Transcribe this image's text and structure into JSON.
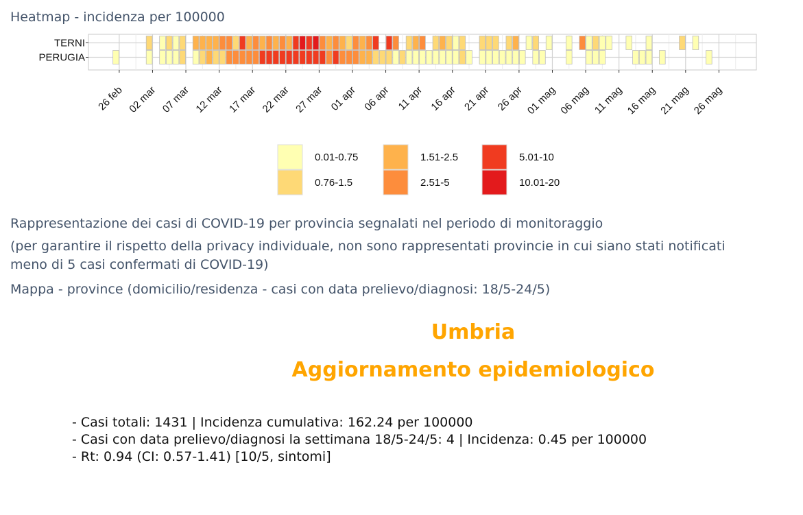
{
  "heatmap": {
    "title": "Heatmap - incidenza per 100000"
  },
  "chart_data": {
    "type": "heatmap",
    "title": "Heatmap - incidenza per 100000",
    "rows": [
      "TERNI",
      "PERUGIA"
    ],
    "x_start": "2020-02-22",
    "x_end": "2020-05-31",
    "x_tick_labels": [
      "26 feb",
      "02 mar",
      "07 mar",
      "12 mar",
      "17 mar",
      "22 mar",
      "27 mar",
      "01 apr",
      "06 apr",
      "11 apr",
      "16 apr",
      "21 apr",
      "26 apr",
      "01 mag",
      "06 mag",
      "11 mag",
      "16 mag",
      "21 mag",
      "26 mag"
    ],
    "x_tick_dates": [
      "2020-02-26",
      "2020-03-02",
      "2020-03-07",
      "2020-03-12",
      "2020-03-17",
      "2020-03-22",
      "2020-03-27",
      "2020-04-01",
      "2020-04-06",
      "2020-04-11",
      "2020-04-16",
      "2020-04-21",
      "2020-04-26",
      "2020-05-01",
      "2020-05-06",
      "2020-05-11",
      "2020-05-16",
      "2020-05-21",
      "2020-05-26"
    ],
    "legend": [
      {
        "label": "0.01-0.75",
        "color": "#ffffb2"
      },
      {
        "label": "0.76-1.5",
        "color": "#fed976"
      },
      {
        "label": "1.51-2.5",
        "color": "#feb24c"
      },
      {
        "label": "2.51-5",
        "color": "#fd8d3c"
      },
      {
        "label": "5.01-10",
        "color": "#f03b20"
      },
      {
        "label": "10.01-20",
        "color": "#e31a1c"
      }
    ],
    "cells": {
      "TERNI": [
        {
          "date": "2020-03-01",
          "cls": 1
        },
        {
          "date": "2020-03-03",
          "cls": 0
        },
        {
          "date": "2020-03-04",
          "cls": 1
        },
        {
          "date": "2020-03-05",
          "cls": 0
        },
        {
          "date": "2020-03-06",
          "cls": 1
        },
        {
          "date": "2020-03-08",
          "cls": 2
        },
        {
          "date": "2020-03-09",
          "cls": 2
        },
        {
          "date": "2020-03-10",
          "cls": 2
        },
        {
          "date": "2020-03-11",
          "cls": 2
        },
        {
          "date": "2020-03-12",
          "cls": 3
        },
        {
          "date": "2020-03-13",
          "cls": 3
        },
        {
          "date": "2020-03-14",
          "cls": 1
        },
        {
          "date": "2020-03-15",
          "cls": 4
        },
        {
          "date": "2020-03-16",
          "cls": 2
        },
        {
          "date": "2020-03-17",
          "cls": 3
        },
        {
          "date": "2020-03-18",
          "cls": 2
        },
        {
          "date": "2020-03-19",
          "cls": 3
        },
        {
          "date": "2020-03-20",
          "cls": 2
        },
        {
          "date": "2020-03-21",
          "cls": 3
        },
        {
          "date": "2020-03-22",
          "cls": 2
        },
        {
          "date": "2020-03-23",
          "cls": 4
        },
        {
          "date": "2020-03-24",
          "cls": 5
        },
        {
          "date": "2020-03-25",
          "cls": 4
        },
        {
          "date": "2020-03-26",
          "cls": 5
        },
        {
          "date": "2020-03-27",
          "cls": 3
        },
        {
          "date": "2020-03-28",
          "cls": 2
        },
        {
          "date": "2020-03-29",
          "cls": 3
        },
        {
          "date": "2020-03-30",
          "cls": 2
        },
        {
          "date": "2020-03-31",
          "cls": 1
        },
        {
          "date": "2020-04-01",
          "cls": 3
        },
        {
          "date": "2020-04-02",
          "cls": 2
        },
        {
          "date": "2020-04-03",
          "cls": 3
        },
        {
          "date": "2020-04-04",
          "cls": 4
        },
        {
          "date": "2020-04-06",
          "cls": 4
        },
        {
          "date": "2020-04-07",
          "cls": 3
        },
        {
          "date": "2020-04-09",
          "cls": 1
        },
        {
          "date": "2020-04-10",
          "cls": 2
        },
        {
          "date": "2020-04-11",
          "cls": 3
        },
        {
          "date": "2020-04-13",
          "cls": 1
        },
        {
          "date": "2020-04-14",
          "cls": 2
        },
        {
          "date": "2020-04-15",
          "cls": 1
        },
        {
          "date": "2020-04-16",
          "cls": 0
        },
        {
          "date": "2020-04-17",
          "cls": 1
        },
        {
          "date": "2020-04-20",
          "cls": 1
        },
        {
          "date": "2020-04-21",
          "cls": 1
        },
        {
          "date": "2020-04-22",
          "cls": 1
        },
        {
          "date": "2020-04-24",
          "cls": 1
        },
        {
          "date": "2020-04-25",
          "cls": 2
        },
        {
          "date": "2020-04-27",
          "cls": 0
        },
        {
          "date": "2020-04-28",
          "cls": 1
        },
        {
          "date": "2020-04-30",
          "cls": 0
        },
        {
          "date": "2020-05-03",
          "cls": 0
        },
        {
          "date": "2020-05-05",
          "cls": 3
        },
        {
          "date": "2020-05-06",
          "cls": 0
        },
        {
          "date": "2020-05-07",
          "cls": 1
        },
        {
          "date": "2020-05-08",
          "cls": 0
        },
        {
          "date": "2020-05-09",
          "cls": 0
        },
        {
          "date": "2020-05-12",
          "cls": 0
        },
        {
          "date": "2020-05-15",
          "cls": 0
        },
        {
          "date": "2020-05-20",
          "cls": 1
        },
        {
          "date": "2020-05-22",
          "cls": 0
        }
      ],
      "PERUGIA": [
        {
          "date": "2020-02-25",
          "cls": 0
        },
        {
          "date": "2020-03-01",
          "cls": 0
        },
        {
          "date": "2020-03-03",
          "cls": 0
        },
        {
          "date": "2020-03-04",
          "cls": 0
        },
        {
          "date": "2020-03-05",
          "cls": 0
        },
        {
          "date": "2020-03-06",
          "cls": 1
        },
        {
          "date": "2020-03-08",
          "cls": 0
        },
        {
          "date": "2020-03-09",
          "cls": 1
        },
        {
          "date": "2020-03-10",
          "cls": 2
        },
        {
          "date": "2020-03-11",
          "cls": 1
        },
        {
          "date": "2020-03-12",
          "cls": 1
        },
        {
          "date": "2020-03-13",
          "cls": 3
        },
        {
          "date": "2020-03-14",
          "cls": 3
        },
        {
          "date": "2020-03-15",
          "cls": 3
        },
        {
          "date": "2020-03-16",
          "cls": 3
        },
        {
          "date": "2020-03-17",
          "cls": 3
        },
        {
          "date": "2020-03-18",
          "cls": 4
        },
        {
          "date": "2020-03-19",
          "cls": 4
        },
        {
          "date": "2020-03-20",
          "cls": 4
        },
        {
          "date": "2020-03-21",
          "cls": 4
        },
        {
          "date": "2020-03-22",
          "cls": 4
        },
        {
          "date": "2020-03-23",
          "cls": 4
        },
        {
          "date": "2020-03-24",
          "cls": 4
        },
        {
          "date": "2020-03-25",
          "cls": 4
        },
        {
          "date": "2020-03-26",
          "cls": 4
        },
        {
          "date": "2020-03-27",
          "cls": 4
        },
        {
          "date": "2020-03-28",
          "cls": 3
        },
        {
          "date": "2020-03-29",
          "cls": 4
        },
        {
          "date": "2020-03-30",
          "cls": 3
        },
        {
          "date": "2020-03-31",
          "cls": 3
        },
        {
          "date": "2020-04-01",
          "cls": 3
        },
        {
          "date": "2020-04-02",
          "cls": 2
        },
        {
          "date": "2020-04-03",
          "cls": 2
        },
        {
          "date": "2020-04-04",
          "cls": 1
        },
        {
          "date": "2020-04-05",
          "cls": 1
        },
        {
          "date": "2020-04-06",
          "cls": 1
        },
        {
          "date": "2020-04-07",
          "cls": 0
        },
        {
          "date": "2020-04-08",
          "cls": 1
        },
        {
          "date": "2020-04-09",
          "cls": 0
        },
        {
          "date": "2020-04-10",
          "cls": 0
        },
        {
          "date": "2020-04-11",
          "cls": 0
        },
        {
          "date": "2020-04-12",
          "cls": 0
        },
        {
          "date": "2020-04-13",
          "cls": 0
        },
        {
          "date": "2020-04-14",
          "cls": 0
        },
        {
          "date": "2020-04-15",
          "cls": 0
        },
        {
          "date": "2020-04-16",
          "cls": 0
        },
        {
          "date": "2020-04-17",
          "cls": 1
        },
        {
          "date": "2020-04-18",
          "cls": 0
        },
        {
          "date": "2020-04-20",
          "cls": 0
        },
        {
          "date": "2020-04-21",
          "cls": 0
        },
        {
          "date": "2020-04-22",
          "cls": 0
        },
        {
          "date": "2020-04-23",
          "cls": 0
        },
        {
          "date": "2020-04-24",
          "cls": 0
        },
        {
          "date": "2020-04-25",
          "cls": 0
        },
        {
          "date": "2020-04-26",
          "cls": 0
        },
        {
          "date": "2020-04-28",
          "cls": 0
        },
        {
          "date": "2020-04-29",
          "cls": 0
        },
        {
          "date": "2020-05-03",
          "cls": 0
        },
        {
          "date": "2020-05-06",
          "cls": 0
        },
        {
          "date": "2020-05-07",
          "cls": 0
        },
        {
          "date": "2020-05-08",
          "cls": 0
        },
        {
          "date": "2020-05-13",
          "cls": 0
        },
        {
          "date": "2020-05-14",
          "cls": 0
        },
        {
          "date": "2020-05-15",
          "cls": 0
        },
        {
          "date": "2020-05-17",
          "cls": 0
        },
        {
          "date": "2020-05-24",
          "cls": 0
        }
      ]
    }
  },
  "description": {
    "line1": "Rappresentazione dei casi di COVID-19 per provincia segnalati nel periodo di monitoraggio",
    "line2": "(per garantire il rispetto della privacy individuale, non sono rappresentati provincie in cui siano stati notificati",
    "line3": "meno di 5 casi confermati di COVID-19)",
    "line4": "Mappa - province (domicilio/residenza - casi con data prelievo/diagnosi: 18/5-24/5)"
  },
  "region": {
    "name": "Umbria",
    "subtitle": "Aggiornamento epidemiologico"
  },
  "stats": [
    "- Casi totali: 1431 | Incidenza cumulativa: 162.24 per 100000",
    "- Casi con data prelievo/diagnosi la settimana 18/5-24/5: 4 | Incidenza: 0.45 per 100000",
    "- Rt: 0.94 (CI: 0.57-1.41) [10/5, sintomi]"
  ]
}
